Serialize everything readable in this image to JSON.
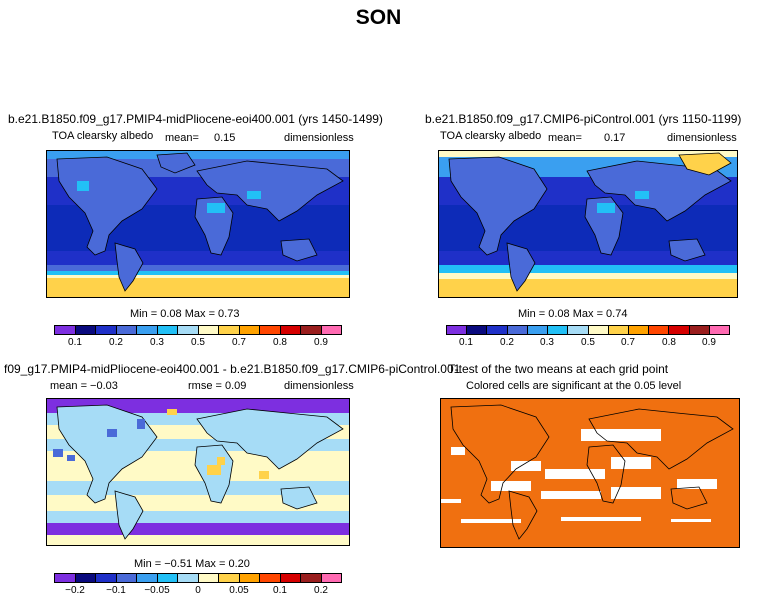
{
  "main_title": "SON",
  "panels": [
    {
      "title": "b.e21.B1850.f09_g17.PMIP4-midPliocene-eoi400.001 (yrs 1450-1499)",
      "variable": "TOA clearsky albedo",
      "mean_label": "mean=",
      "mean_value": "0.15",
      "units": "dimensionless",
      "stats": "Min =   0.08 Max =   0.73"
    },
    {
      "title": "b.e21.B1850.f09_g17.CMIP6-piControl.001 (yrs 1150-1199)",
      "variable": "TOA clearsky albedo",
      "mean_label": "mean=",
      "mean_value": "0.17",
      "units": "dimensionless",
      "stats": "Min =   0.08 Max =   0.74"
    },
    {
      "title": "f09_g17.PMIP4-midPliocene-eoi400.001 - b.e21.B1850.f09_g17.CMIP6-piControl.001",
      "mean_text": "mean = −0.03",
      "rmse_text": "rmse =   0.09",
      "units": "dimensionless",
      "stats": "Min =  −0.51 Max =   0.20"
    },
    {
      "title": "T-test of the two means at each grid point",
      "subtitle": "Colored cells are significant at the 0.05 level"
    }
  ],
  "colorbar_abs": {
    "colors": [
      "#7d2fe0",
      "#0a0a7e",
      "#1f30c8",
      "#4a6ad8",
      "#3a9ff0",
      "#22c0f6",
      "#a6dcf6",
      "#fffac6",
      "#ffd24a",
      "#ffa200",
      "#ff4600",
      "#d60000",
      "#9a1e1e",
      "#ff6ab2"
    ],
    "ticks": [
      "0.1",
      "0.2",
      "0.3",
      "0.5",
      "0.7",
      "0.8",
      "0.9"
    ]
  },
  "colorbar_diff": {
    "colors": [
      "#7d2fe0",
      "#0a0a7e",
      "#1f30c8",
      "#4a6ad8",
      "#3a9ff0",
      "#22c0f6",
      "#a6dcf6",
      "#fffac6",
      "#ffd24a",
      "#ffa200",
      "#ff4600",
      "#d60000",
      "#9a1e1e",
      "#ff6ab2"
    ],
    "ticks": [
      "−0.2",
      "−0.1",
      "−0.05",
      "0",
      "0.05",
      "0.1",
      "0.2"
    ]
  },
  "colors": {
    "ttest_fill": "#f07010",
    "ocean_deep": "#0d2bb8"
  }
}
